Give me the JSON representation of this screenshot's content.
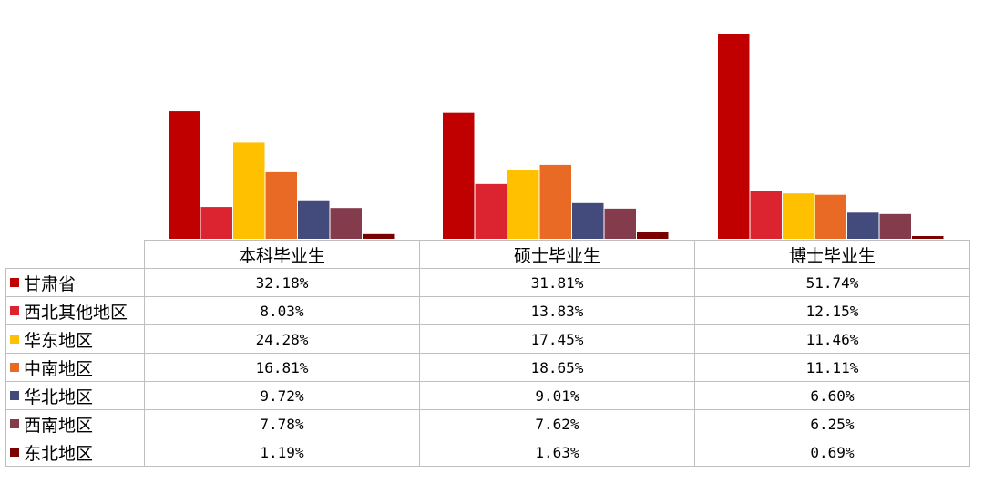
{
  "chart_data": {
    "type": "bar",
    "categories": [
      "本科毕业生",
      "硕士毕业生",
      "博士毕业生"
    ],
    "series": [
      {
        "name": "甘肃省",
        "color": "#c00000",
        "values": [
          32.18,
          31.81,
          51.74
        ],
        "labels": [
          "32.18%",
          "31.81%",
          "51.74%"
        ]
      },
      {
        "name": "西北其他地区",
        "color": "#dc2430",
        "values": [
          8.03,
          13.83,
          12.15
        ],
        "labels": [
          "8.03%",
          "13.83%",
          "12.15%"
        ]
      },
      {
        "name": "华东地区",
        "color": "#ffc000",
        "values": [
          24.28,
          17.45,
          11.46
        ],
        "labels": [
          "24.28%",
          "17.45%",
          "11.46%"
        ]
      },
      {
        "name": "中南地区",
        "color": "#e86a24",
        "values": [
          16.81,
          18.65,
          11.11
        ],
        "labels": [
          "16.81%",
          "18.65%",
          "11.11%"
        ]
      },
      {
        "name": "华北地区",
        "color": "#434a7c",
        "values": [
          9.72,
          9.01,
          6.6
        ],
        "labels": [
          "9.72%",
          "9.01%",
          "6.60%"
        ]
      },
      {
        "name": "西南地区",
        "color": "#843c4c",
        "values": [
          7.78,
          7.62,
          6.25
        ],
        "labels": [
          "7.78%",
          "7.62%",
          "6.25%"
        ]
      },
      {
        "name": "东北地区",
        "color": "#7b0000",
        "values": [
          1.19,
          1.63,
          0.69
        ],
        "labels": [
          "1.19%",
          "1.63%",
          "0.69%"
        ]
      }
    ],
    "ylim": [
      0,
      52
    ],
    "grid": false,
    "legend": "data-table-left"
  }
}
